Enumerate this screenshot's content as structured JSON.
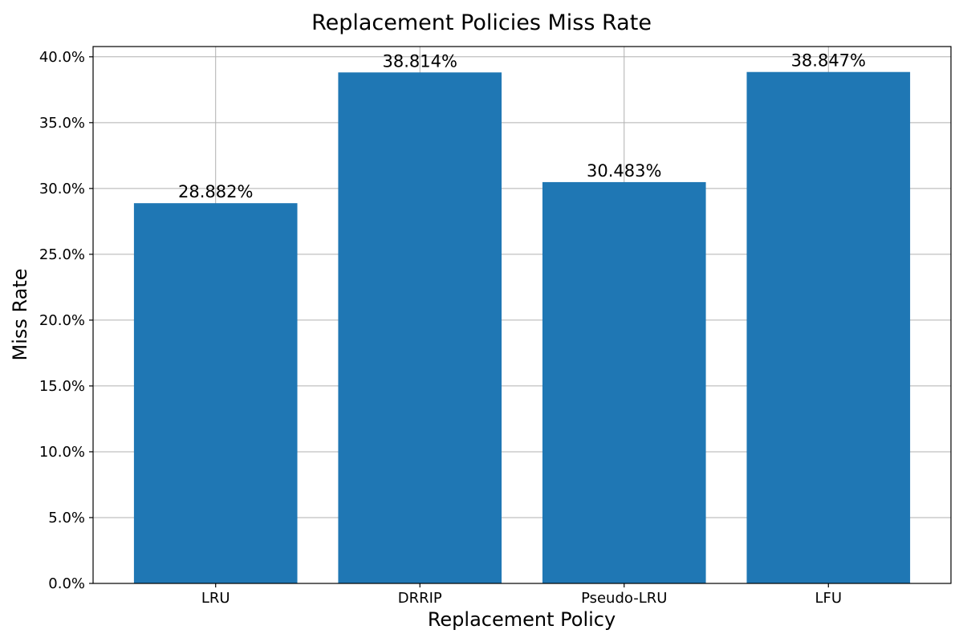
{
  "chart_data": {
    "type": "bar",
    "title": "Replacement Policies Miss Rate",
    "xlabel": "Replacement Policy",
    "ylabel": "Miss Rate",
    "categories": [
      "LRU",
      "DRRIP",
      "Pseudo-LRU",
      "LFU"
    ],
    "values": [
      28.882,
      38.814,
      30.483,
      38.847
    ],
    "value_labels": [
      "28.882%",
      "38.814%",
      "30.483%",
      "38.847%"
    ],
    "y_ticks": [
      0,
      5,
      10,
      15,
      20,
      25,
      30,
      35,
      40
    ],
    "y_tick_labels": [
      "0.0%",
      "5.0%",
      "10.0%",
      "15.0%",
      "20.0%",
      "25.0%",
      "30.0%",
      "35.0%",
      "40.0%"
    ],
    "ylim": [
      0,
      40.78
    ],
    "grid": true,
    "bar_color": "#1f77b4"
  }
}
